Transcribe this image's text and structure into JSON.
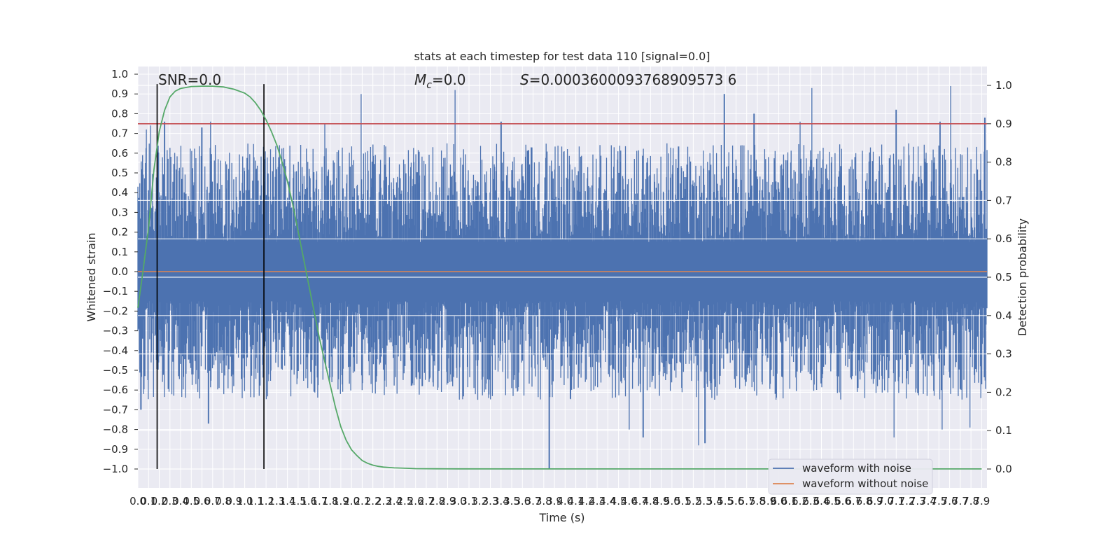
{
  "chart_data": {
    "type": "line",
    "title": "stats at each timestep for test data 110 [signal=0.0]",
    "xlabel": "Time (s)",
    "ylabel": "Whitened strain",
    "y2label": "Detection probability",
    "xlim": [
      0.0,
      7.95
    ],
    "ylim": [
      -1.1,
      1.1
    ],
    "y2lim": [
      -0.05,
      1.05
    ],
    "grid": true,
    "x_ticks": [
      "0.0",
      "0.1",
      "0.2",
      "0.3",
      "0.4",
      "0.5",
      "0.6",
      "0.7",
      "0.8",
      "0.9",
      "1.0",
      "1.1",
      "1.2",
      "1.3",
      "1.4",
      "1.5",
      "1.6",
      "1.7",
      "1.8",
      "1.9",
      "2.0",
      "2.1",
      "2.2",
      "2.3",
      "2.4",
      "2.5",
      "2.6",
      "2.7",
      "2.8",
      "2.9",
      "3.0",
      "3.1",
      "3.2",
      "3.3",
      "3.4",
      "3.5",
      "3.6",
      "3.7",
      "3.8",
      "3.9",
      "4.0",
      "4.1",
      "4.2",
      "4.3",
      "4.4",
      "4.5",
      "4.6",
      "4.7",
      "4.8",
      "4.9",
      "5.0",
      "5.1",
      "5.2",
      "5.3",
      "5.4",
      "5.5",
      "5.6",
      "5.7",
      "5.8",
      "5.9",
      "6.0",
      "6.1",
      "6.2",
      "6.3",
      "6.4",
      "6.5",
      "6.6",
      "6.7",
      "6.8",
      "6.9",
      "7.0",
      "7.1",
      "7.2",
      "7.3",
      "7.4",
      "7.5",
      "7.6",
      "7.7",
      "7.8",
      "7.9"
    ],
    "y_ticks": [
      "1.0",
      "0.9",
      "0.8",
      "0.7",
      "0.6",
      "0.5",
      "0.4",
      "0.3",
      "0.2",
      "0.1",
      "0.0",
      "-0.1",
      "-0.2",
      "-0.3",
      "-0.4",
      "-0.5",
      "-0.6",
      "-0.7",
      "-0.8",
      "-0.9",
      "-1.0"
    ],
    "y2_ticks": [
      "1.0",
      "0.9",
      "0.8",
      "0.7",
      "0.6",
      "0.5",
      "0.4",
      "0.3",
      "0.2",
      "0.1",
      "0.0"
    ],
    "annotations": {
      "snr": "SNR=0.0",
      "mc_symbol": "M",
      "mc_sub": "c",
      "mc_value": "=0.0",
      "s_symbol": "S",
      "s_value": "=0.0003600093768909573 6"
    },
    "series": [
      {
        "name": "waveform with noise",
        "color": "#4c72b0",
        "axis": "left",
        "style": "dense noise envelope",
        "typical_range": [
          -0.55,
          0.55
        ],
        "peaks": [
          {
            "x": 0.0,
            "y": 0.43
          },
          {
            "x": 0.08,
            "y": 0.72
          },
          {
            "x": 0.12,
            "y": 0.74
          },
          {
            "x": 0.25,
            "y": 0.76
          },
          {
            "x": 0.6,
            "y": 0.73
          },
          {
            "x": 0.68,
            "y": 0.76
          },
          {
            "x": 1.75,
            "y": 0.75
          },
          {
            "x": 2.09,
            "y": 0.9
          },
          {
            "x": 2.97,
            "y": 0.92
          },
          {
            "x": 3.4,
            "y": 0.76
          },
          {
            "x": 5.49,
            "y": 0.9
          },
          {
            "x": 5.77,
            "y": 0.8
          },
          {
            "x": 6.2,
            "y": 0.76
          },
          {
            "x": 6.31,
            "y": 0.93
          },
          {
            "x": 7.1,
            "y": 0.82
          },
          {
            "x": 7.51,
            "y": 0.76
          },
          {
            "x": 7.61,
            "y": 0.94
          },
          {
            "x": 7.93,
            "y": 0.78
          }
        ],
        "troughs": [
          {
            "x": 0.03,
            "y": -0.7
          },
          {
            "x": 0.66,
            "y": -0.77
          },
          {
            "x": 3.85,
            "y": -1.0
          },
          {
            "x": 4.6,
            "y": -0.8
          },
          {
            "x": 4.73,
            "y": -0.84
          },
          {
            "x": 5.25,
            "y": -0.88
          },
          {
            "x": 5.31,
            "y": -0.87
          },
          {
            "x": 7.08,
            "y": -0.84
          },
          {
            "x": 7.53,
            "y": -0.8
          },
          {
            "x": 7.79,
            "y": -0.79
          }
        ]
      },
      {
        "name": "waveform without noise",
        "color": "#dd8452",
        "axis": "left",
        "x": [
          0.0,
          7.95
        ],
        "y": [
          0.0,
          0.0
        ]
      },
      {
        "color": "#55a868",
        "axis": "right",
        "x": [
          0.0,
          0.05,
          0.1,
          0.15,
          0.2,
          0.25,
          0.3,
          0.35,
          0.4,
          0.5,
          0.6,
          0.7,
          0.8,
          0.9,
          1.0,
          1.05,
          1.1,
          1.15,
          1.2,
          1.25,
          1.3,
          1.35,
          1.4,
          1.45,
          1.5,
          1.55,
          1.6,
          1.65,
          1.7,
          1.75,
          1.8,
          1.85,
          1.9,
          1.95,
          2.0,
          2.05,
          2.1,
          2.15,
          2.2,
          2.25,
          2.3,
          2.4,
          2.5,
          2.6,
          2.8,
          3.0,
          4.0,
          5.0,
          6.0,
          7.0,
          7.9
        ],
        "y": [
          0.42,
          0.52,
          0.63,
          0.78,
          0.88,
          0.935,
          0.97,
          0.985,
          0.992,
          0.997,
          0.998,
          0.998,
          0.996,
          0.99,
          0.98,
          0.97,
          0.955,
          0.935,
          0.91,
          0.88,
          0.845,
          0.8,
          0.75,
          0.69,
          0.62,
          0.55,
          0.48,
          0.41,
          0.34,
          0.28,
          0.22,
          0.16,
          0.11,
          0.075,
          0.05,
          0.035,
          0.022,
          0.015,
          0.01,
          0.007,
          0.005,
          0.003,
          0.002,
          0.001,
          0.0005,
          0.0003,
          0.0002,
          0.0002,
          0.0001,
          0.0001,
          0.0001
        ]
      }
    ],
    "hlines": [
      {
        "y_right": 0.9,
        "color": "#c44e52"
      }
    ],
    "vlines": [
      {
        "x": 0.18,
        "color": "#000000",
        "y_range": [
          -1.0,
          0.95
        ]
      },
      {
        "x": 1.18,
        "color": "#000000",
        "y_range": [
          -1.0,
          0.95
        ]
      }
    ],
    "legend": {
      "placement": "lower-right",
      "entries": [
        {
          "label": "waveform with noise",
          "color": "#4c72b0"
        },
        {
          "label": "waveform without noise",
          "color": "#dd8452"
        }
      ]
    },
    "colors": {
      "background": "#eaeaf2",
      "grid": "#ffffff",
      "noise": "#4c72b0",
      "clean": "#dd8452",
      "probability": "#55a868",
      "threshold": "#c44e52"
    }
  }
}
